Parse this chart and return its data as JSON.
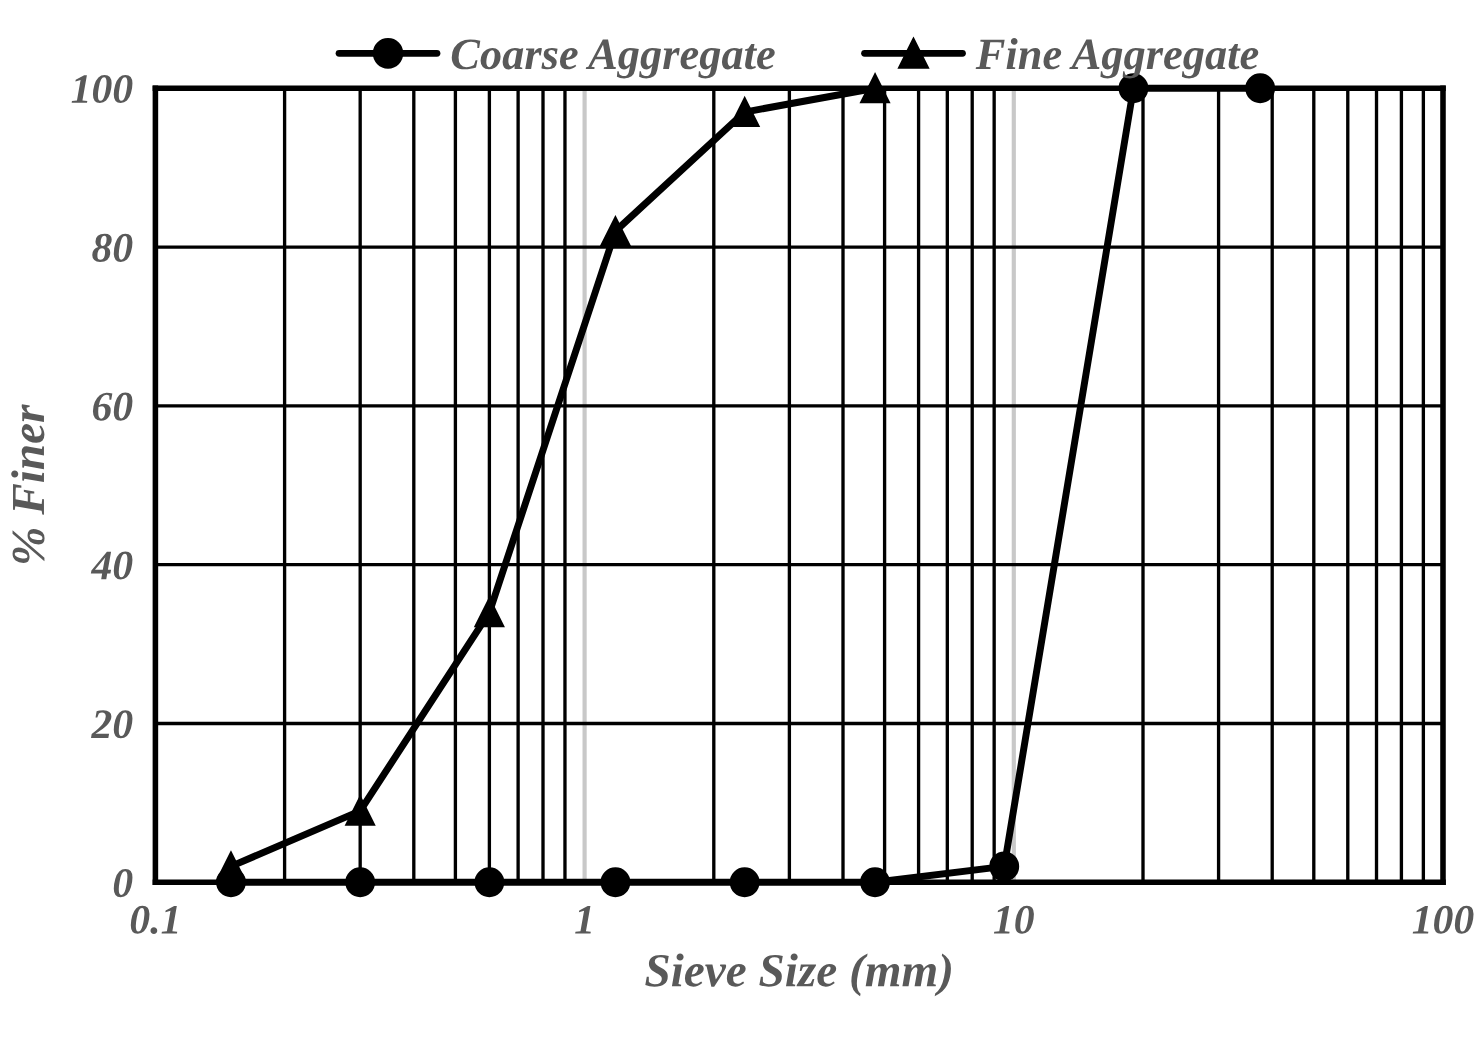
{
  "chart_data": {
    "type": "line",
    "xlabel": "Sieve Size (mm)",
    "ylabel": "% Finer",
    "log": "x",
    "xlim": [
      0.1,
      100
    ],
    "xticks": [
      0.1,
      1,
      10,
      100
    ],
    "ylim": [
      0,
      100
    ],
    "yticks": [
      0,
      20,
      40,
      60,
      80,
      100
    ],
    "grid": true,
    "legend": "top",
    "series": [
      {
        "name": "Coarse Aggregate",
        "color": "#000000",
        "marker": "circle",
        "x": [
          0.15,
          0.3,
          0.6,
          1.18,
          2.36,
          4.75,
          9.5,
          19,
          37.5
        ],
        "values": [
          0,
          0,
          0,
          0,
          0,
          0,
          2,
          100,
          100
        ]
      },
      {
        "name": "Fine Aggregate",
        "color": "#000000",
        "marker": "triangle",
        "x": [
          0.15,
          0.3,
          0.6,
          1.18,
          2.36,
          4.75
        ],
        "values": [
          2,
          9,
          34,
          82,
          97,
          100
        ]
      }
    ]
  }
}
